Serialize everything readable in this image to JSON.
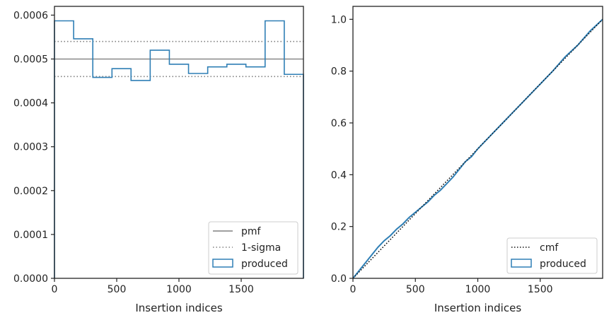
{
  "colors": {
    "produced": "#2f7fb5",
    "reference": "#808080",
    "cmf": "#111111",
    "axes": "#222222"
  },
  "chart_data": [
    {
      "type": "histogram",
      "xlabel": "Insertion indices",
      "ylabel": "",
      "xlim": [
        0,
        2000
      ],
      "ylim": [
        0,
        0.00062
      ],
      "xticks": [
        0,
        500,
        1000,
        1500
      ],
      "xtick_labels": [
        "0",
        "500",
        "1000",
        "1500"
      ],
      "yticks": [
        0,
        0.0001,
        0.0002,
        0.0003,
        0.0004,
        0.0005,
        0.0006
      ],
      "ytick_labels": [
        "0.0000",
        "0.0001",
        "0.0002",
        "0.0003",
        "0.0004",
        "0.0005",
        "0.0006"
      ],
      "bins": [
        0,
        154,
        308,
        462,
        615,
        769,
        923,
        1077,
        1231,
        1385,
        1538,
        1692,
        1846,
        2000
      ],
      "values": [
        0.000587,
        0.000546,
        0.000458,
        0.000478,
        0.000451,
        0.00052,
        0.000488,
        0.000467,
        0.000482,
        0.000488,
        0.000482,
        0.000587,
        0.000465
      ],
      "pmf": 0.0005,
      "sigma_band": [
        0.00046,
        0.00054
      ],
      "legend": {
        "position": "lower right",
        "entries": [
          "pmf",
          "1-sigma",
          "produced"
        ]
      }
    },
    {
      "type": "line",
      "xlabel": "Insertion indices",
      "ylabel": "",
      "xlim": [
        0,
        2000
      ],
      "ylim": [
        0,
        1.05
      ],
      "xticks": [
        0,
        500,
        1000,
        1500
      ],
      "xtick_labels": [
        "0",
        "500",
        "1000",
        "1500"
      ],
      "yticks": [
        0,
        0.2,
        0.4,
        0.6,
        0.8,
        1.0
      ],
      "ytick_labels": [
        "0.0",
        "0.2",
        "0.4",
        "0.6",
        "0.8",
        "1.0"
      ],
      "series": [
        {
          "name": "cmf",
          "style": "dotted",
          "x": [
            0,
            2000
          ],
          "y": [
            0,
            1.0
          ]
        },
        {
          "name": "produced",
          "style": "solid",
          "x": [
            0,
            50,
            100,
            150,
            200,
            250,
            300,
            350,
            400,
            450,
            500,
            550,
            600,
            650,
            700,
            750,
            800,
            850,
            900,
            950,
            1000,
            1100,
            1200,
            1300,
            1400,
            1500,
            1600,
            1700,
            1800,
            1900,
            2000
          ],
          "y": [
            0,
            0.03,
            0.06,
            0.09,
            0.12,
            0.145,
            0.165,
            0.19,
            0.21,
            0.235,
            0.255,
            0.275,
            0.295,
            0.32,
            0.34,
            0.365,
            0.39,
            0.42,
            0.45,
            0.47,
            0.5,
            0.55,
            0.6,
            0.65,
            0.7,
            0.75,
            0.8,
            0.855,
            0.9,
            0.955,
            1.0
          ]
        }
      ],
      "legend": {
        "position": "lower right",
        "entries": [
          "cmf",
          "produced"
        ]
      }
    }
  ]
}
